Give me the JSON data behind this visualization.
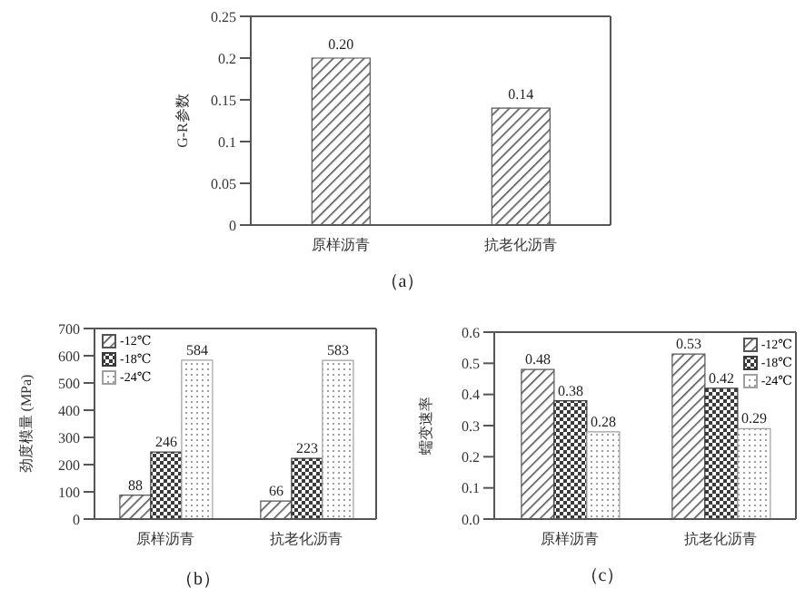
{
  "chart_data": [
    {
      "type": "bar",
      "title": "（a）",
      "ylabel": "G-R参数",
      "categories": [
        "原样沥青",
        "抗老化沥青"
      ],
      "series": [
        {
          "color": "#555555",
          "values": [
            0.2,
            0.14
          ],
          "value_labels": [
            "0.20",
            "0.14"
          ]
        }
      ],
      "ylim": [
        0,
        0.25
      ],
      "yticks": [
        0,
        0.05,
        0.1,
        0.15,
        0.2,
        0.25
      ],
      "grid": false,
      "legend": false
    },
    {
      "type": "bar",
      "title": "（b）",
      "ylabel": "劲度模量 (MPa)",
      "categories": [
        "原样沥青",
        "抗老化沥青"
      ],
      "series": [
        {
          "name": "-12℃",
          "color": "#555555",
          "values": [
            88,
            66
          ]
        },
        {
          "name": "-18℃",
          "color": "#3a3a3a",
          "values": [
            246,
            223
          ]
        },
        {
          "name": "-24℃",
          "color": "#a0a0a0",
          "values": [
            584,
            583
          ]
        }
      ],
      "ylim": [
        0,
        700
      ],
      "yticks": [
        0,
        100,
        200,
        300,
        400,
        500,
        600,
        700
      ],
      "grid": false,
      "legend": "top left",
      "data_labels": true
    },
    {
      "type": "bar",
      "title": "（c）",
      "ylabel": "蠕变速率",
      "categories": [
        "原样沥青",
        "抗老化沥青"
      ],
      "series": [
        {
          "name": "-12℃",
          "color": "#555555",
          "values": [
            0.48,
            0.53
          ]
        },
        {
          "name": "-18℃",
          "color": "#3a3a3a",
          "values": [
            0.38,
            0.42
          ]
        },
        {
          "name": "-24℃",
          "color": "#a0a0a0",
          "values": [
            0.28,
            0.29
          ]
        }
      ],
      "ylim": [
        0,
        0.6
      ],
      "yticks": [
        {
          "value": 0,
          "label": "0.0"
        },
        {
          "value": 0.1,
          "label": "0.1"
        },
        {
          "value": 0.2,
          "label": "0.2"
        },
        {
          "value": 0.3,
          "label": "0.3"
        },
        {
          "value": 0.4,
          "label": "0.4"
        },
        {
          "value": 0.5,
          "label": "0.5"
        },
        {
          "value": 0.6,
          "label": "0.6"
        }
      ],
      "grid": false,
      "legend": "top right",
      "data_labels": true
    }
  ]
}
